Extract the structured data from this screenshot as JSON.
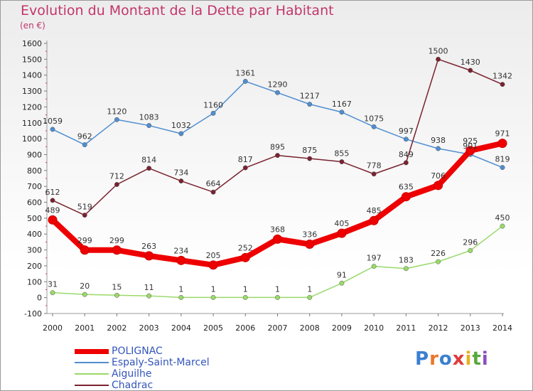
{
  "title": "Evolution du Montant de la Dette par Habitant",
  "subtitle": "(en €)",
  "logo": "Proxiti",
  "chart_data": {
    "type": "line",
    "title": "Evolution du Montant de la Dette par Habitant",
    "subtitle": "(en €)",
    "x": [
      "2000",
      "2001",
      "2002",
      "2003",
      "2004",
      "2005",
      "2006",
      "2007",
      "2008",
      "2009",
      "2010",
      "2011",
      "2012",
      "2013",
      "2014"
    ],
    "y_ticks": [
      "-100",
      "0",
      "100",
      "200",
      "300",
      "400",
      "500",
      "600",
      "700",
      "800",
      "900",
      "1000",
      "1100",
      "1200",
      "1300",
      "1400",
      "1500",
      "1600"
    ],
    "ylim": [
      -100,
      1600
    ],
    "grid": false,
    "legend_position": "bottom-left",
    "series": [
      {
        "name": "Espaly-Saint-Marcel",
        "color": "#4f8ed0",
        "values": [
          1059,
          962,
          1120,
          1083,
          1032,
          1160,
          1361,
          1290,
          1217,
          1167,
          1075,
          997,
          938,
          901,
          819
        ]
      },
      {
        "name": "Aiguilhe",
        "color": "#9ad96a",
        "values": [
          31,
          20,
          15,
          11,
          1,
          1,
          1,
          1,
          1,
          91,
          197,
          183,
          226,
          296,
          450
        ]
      },
      {
        "name": "Chadrac",
        "color": "#7a2230",
        "values": [
          612,
          519,
          712,
          814,
          734,
          664,
          817,
          895,
          875,
          855,
          778,
          849,
          1500,
          1430,
          1342
        ]
      },
      {
        "name": "POLIGNAC",
        "color": "#ee0000",
        "values": [
          489,
          299,
          299,
          263,
          234,
          205,
          252,
          368,
          336,
          405,
          485,
          635,
          706,
          925,
          971
        ]
      }
    ],
    "legend": [
      "POLIGNAC",
      "Espaly-Saint-Marcel",
      "Aiguilhe",
      "Chadrac"
    ]
  }
}
